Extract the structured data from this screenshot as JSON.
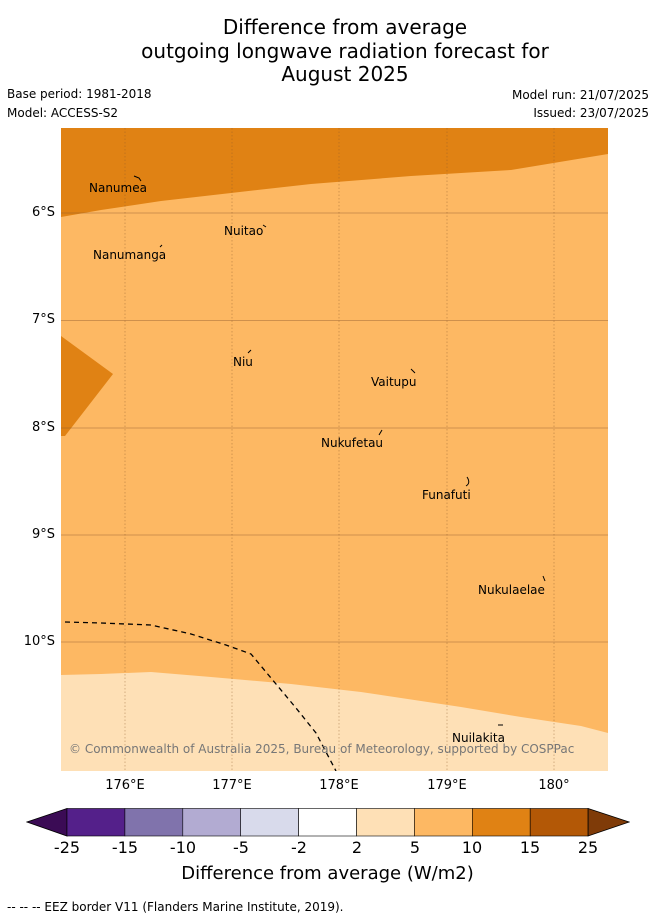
{
  "title": {
    "line1": "Difference from average",
    "line2": "outgoing longwave radiation forecast for",
    "line3": "August 2025"
  },
  "meta": {
    "base_period": "Base period: 1981-2018",
    "model": "Model: ACCESS-S2",
    "model_run": "Model run: 21/07/2025",
    "issued": "Issued: 23/07/2025"
  },
  "axes": {
    "lat_labels": [
      "6°S",
      "7°S",
      "8°S",
      "9°S",
      "10°S"
    ],
    "lon_labels": [
      "176°E",
      "177°E",
      "178°E",
      "179°E",
      "180°"
    ]
  },
  "places": [
    "Nanumea",
    "Nuitao",
    "Nanumanga",
    "Niu",
    "Vaitupu",
    "Nukufetau",
    "Funafuti",
    "Nukulaelae",
    "Nuilakita"
  ],
  "credit": "© Commonwealth of Australia 2025, Bureau of Meteorology, supported by COSPPac",
  "colorbar": {
    "ticks": [
      "-25",
      "-15",
      "-10",
      "-5",
      "-2",
      "2",
      "5",
      "10",
      "15",
      "25"
    ],
    "title": "Difference from average (W/m2)",
    "colors": [
      "#54208a",
      "#8073ac",
      "#b2abd2",
      "#d8daeb",
      "#ffffff",
      "#fee0b6",
      "#fdb863",
      "#e08214",
      "#b35806"
    ],
    "under_color": "#3b0b55",
    "over_color": "#7f3b08"
  },
  "field_colors": {
    "band_10_15": "#e08214",
    "band_5_10": "#fdb863",
    "band_2_5": "#fee0b6"
  },
  "legend": "--  --  -- EEZ border V11 (Flanders Marine Institute, 2019)."
}
